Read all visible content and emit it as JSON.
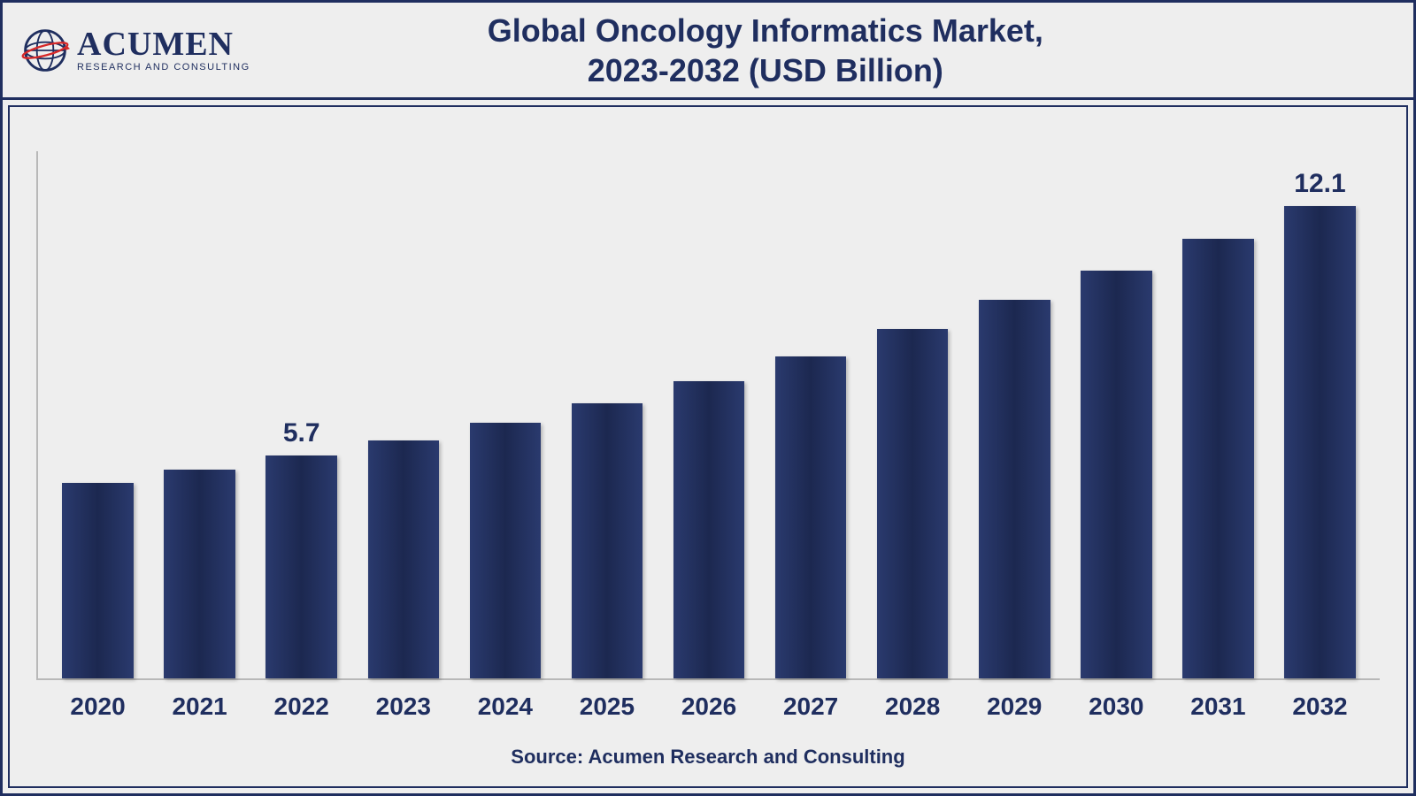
{
  "logo": {
    "main": "ACUMEN",
    "sub": "RESEARCH AND CONSULTING",
    "globe_stroke": "#1f2e5f",
    "globe_accent": "#d62828"
  },
  "title": {
    "line1": "Global Oncology Informatics Market,",
    "line2": "2023-2032 (USD Billion)",
    "color": "#1f2e5f",
    "fontsize": 36
  },
  "chart": {
    "type": "bar",
    "categories": [
      "2020",
      "2021",
      "2022",
      "2023",
      "2024",
      "2025",
      "2026",
      "2027",
      "2028",
      "2029",
      "2030",
      "2031",
      "2032"
    ],
    "values": [
      5.0,
      5.35,
      5.7,
      6.1,
      6.55,
      7.05,
      7.6,
      8.25,
      8.95,
      9.7,
      10.45,
      11.25,
      12.1
    ],
    "value_labels": {
      "2": "5.7",
      "12": "12.1"
    },
    "ylim_max": 13.5,
    "bar_gradient_start": "#2a3a6e",
    "bar_gradient_mid": "#1c2850",
    "bar_gradient_end": "#2a3a6e",
    "axis_color": "#b8b8b8",
    "axis_width": 2,
    "background_color": "#eeeeee",
    "bar_width_ratio": 0.7,
    "category_fontsize": 28,
    "category_fontweight": "bold",
    "category_color": "#1f2e5f",
    "value_label_fontsize": 30,
    "value_label_fontweight": "bold",
    "value_label_color": "#1f2e5f"
  },
  "source": {
    "text": "Source: Acumen Research and Consulting",
    "fontsize": 22,
    "color": "#1f2e5f"
  },
  "frame": {
    "outer_border_color": "#1f2e5f",
    "outer_border_width": 3,
    "inner_border_color": "#1f2e5f",
    "inner_border_width": 2
  }
}
